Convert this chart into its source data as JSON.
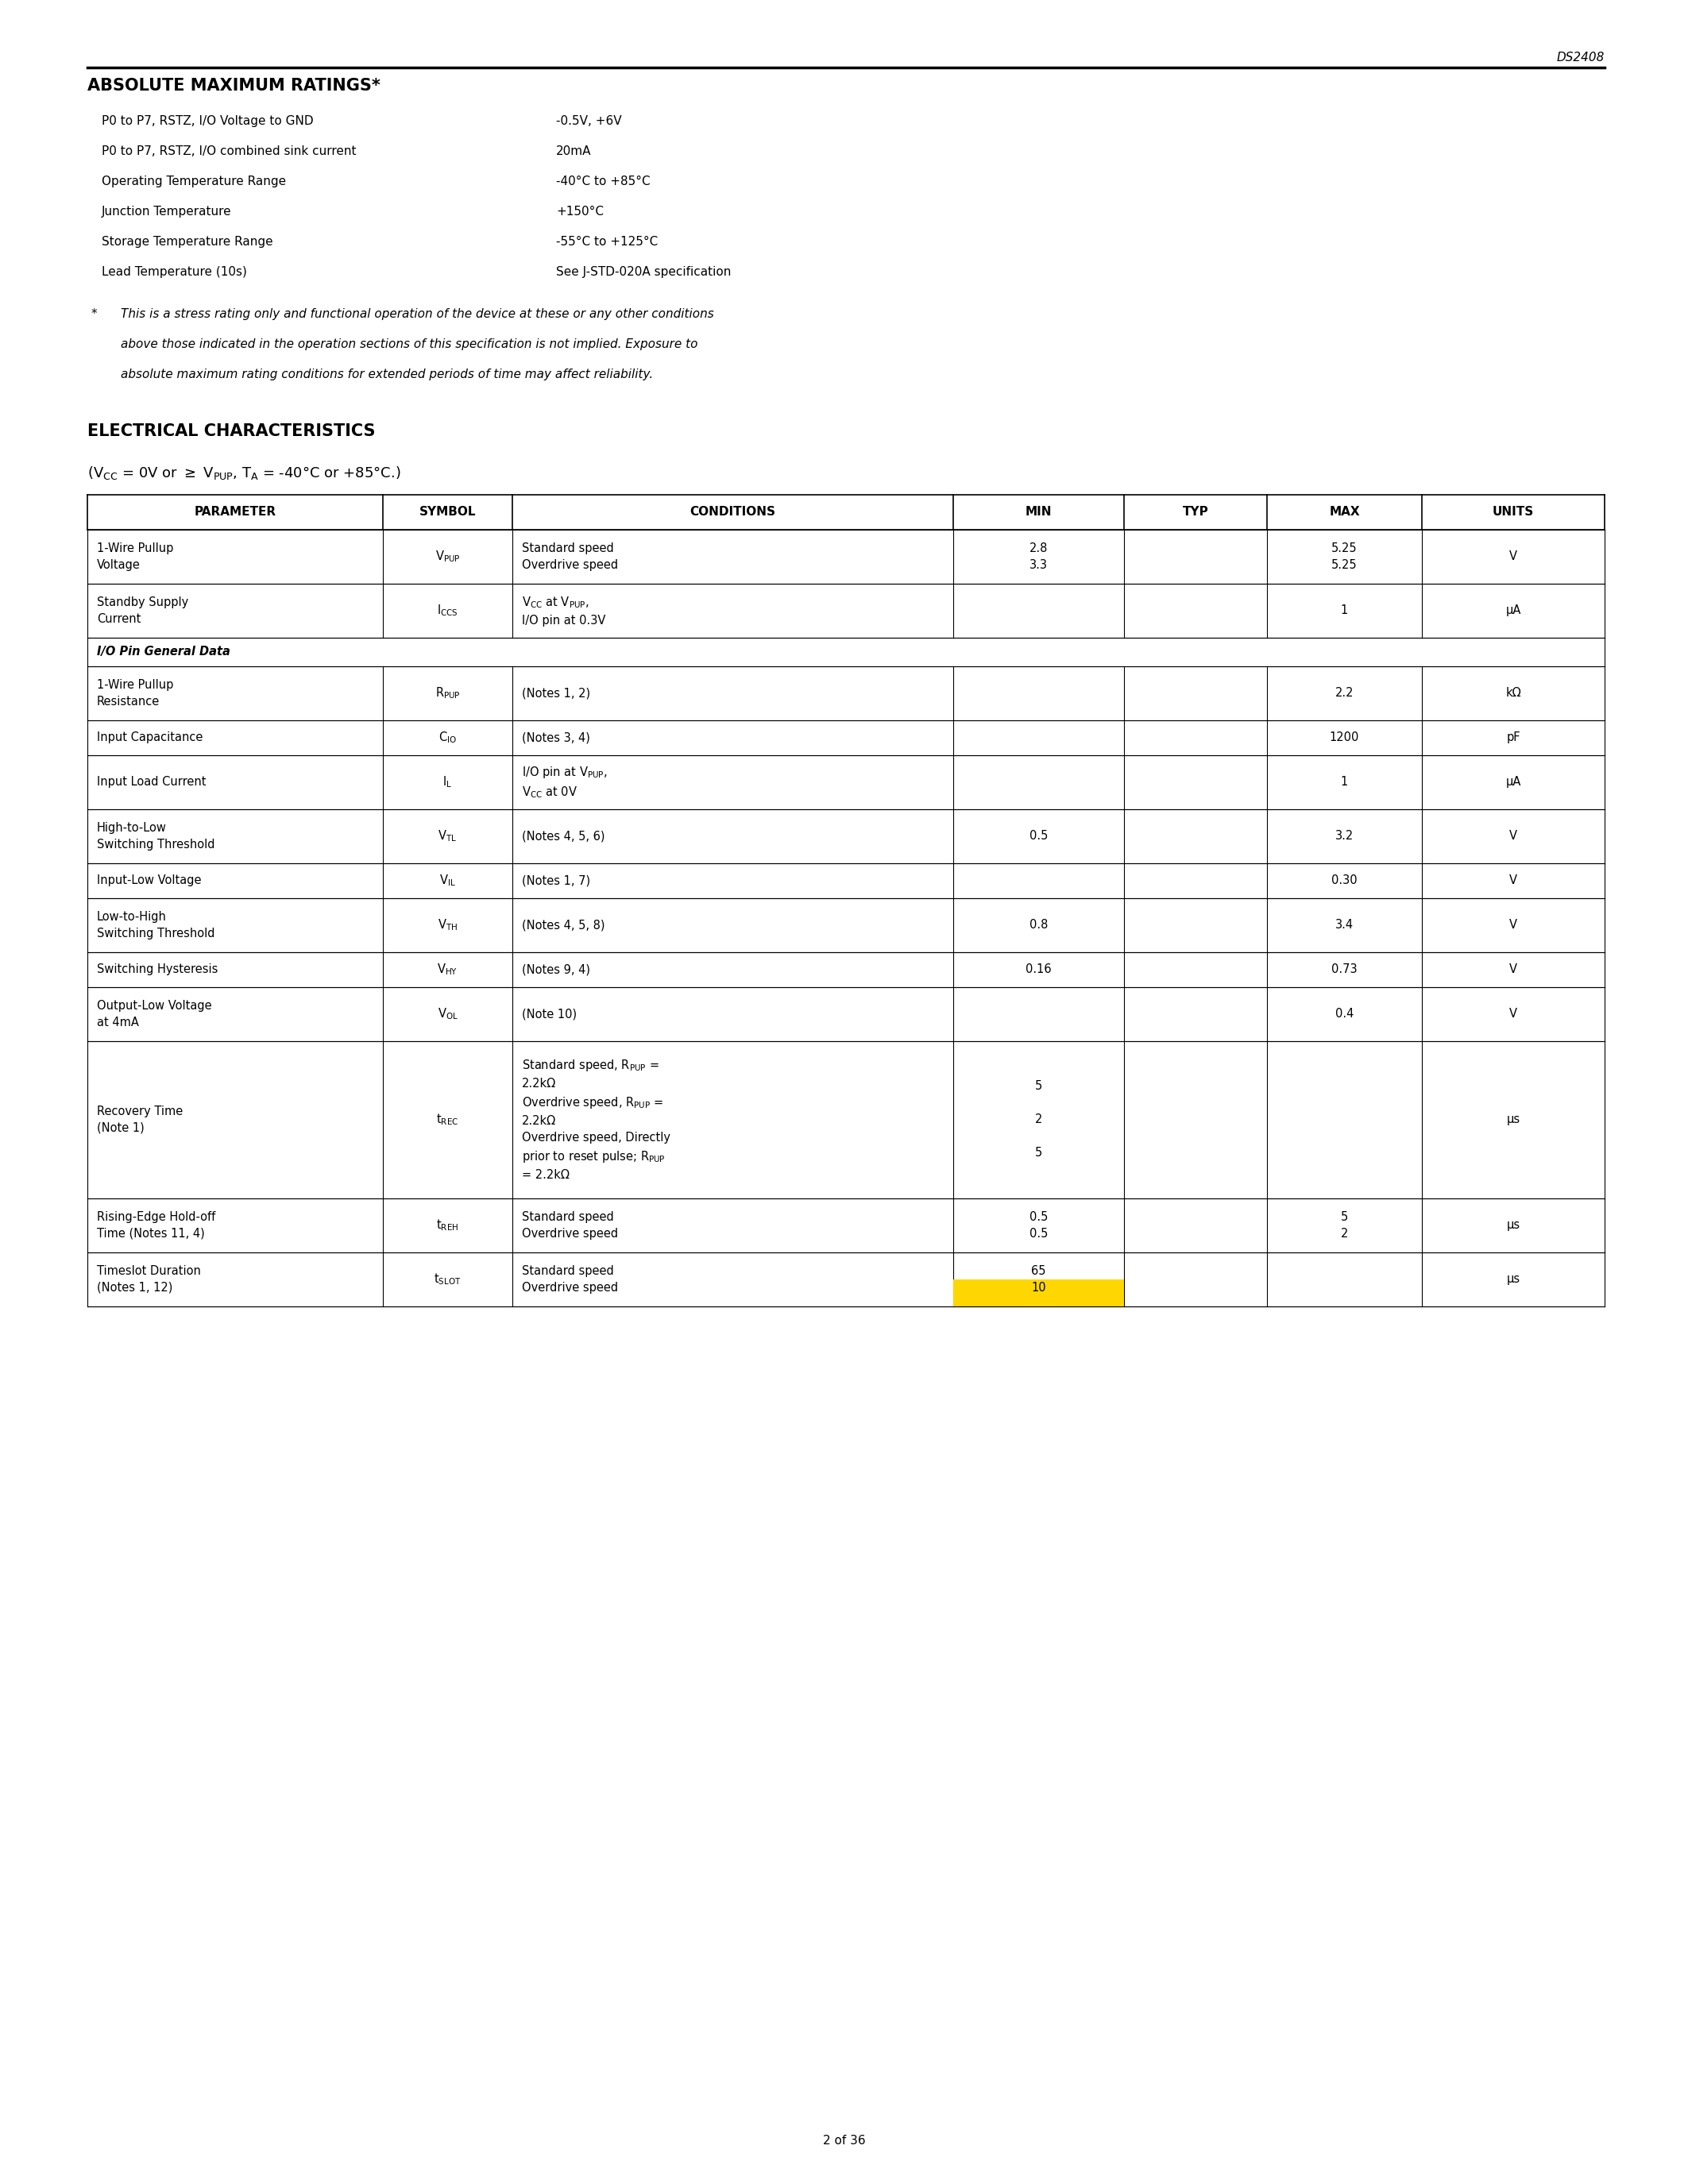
{
  "page_header": "DS2408",
  "section1_title": "ABSOLUTE MAXIMUM RATINGS*",
  "abs_max_ratings": [
    [
      "P0 to P7, RSTZ, I/O Voltage to GND",
      "-0.5V, +6V"
    ],
    [
      "P0 to P7, RSTZ, I/O combined sink current",
      "20mA"
    ],
    [
      "Operating Temperature Range",
      "-40°C to +85°C"
    ],
    [
      "Junction Temperature",
      "+150°C"
    ],
    [
      "Storage Temperature Range",
      "-55°C to +125°C"
    ],
    [
      "Lead Temperature (10s)",
      "See J-STD-020A specification"
    ]
  ],
  "footnote_star": "*",
  "footnote_line1": "This is a stress rating only and functional operation of the device at these or any other conditions",
  "footnote_line2": "above those indicated in the operation sections of this specification is not implied. Exposure to",
  "footnote_line3": "absolute maximum rating conditions for extended periods of time may affect reliability.",
  "section2_title": "ELECTRICAL CHARACTERISTICS",
  "highlight_color": "#FFD700",
  "page_footer": "2 of 36",
  "background_color": "#ffffff",
  "text_color": "#000000"
}
